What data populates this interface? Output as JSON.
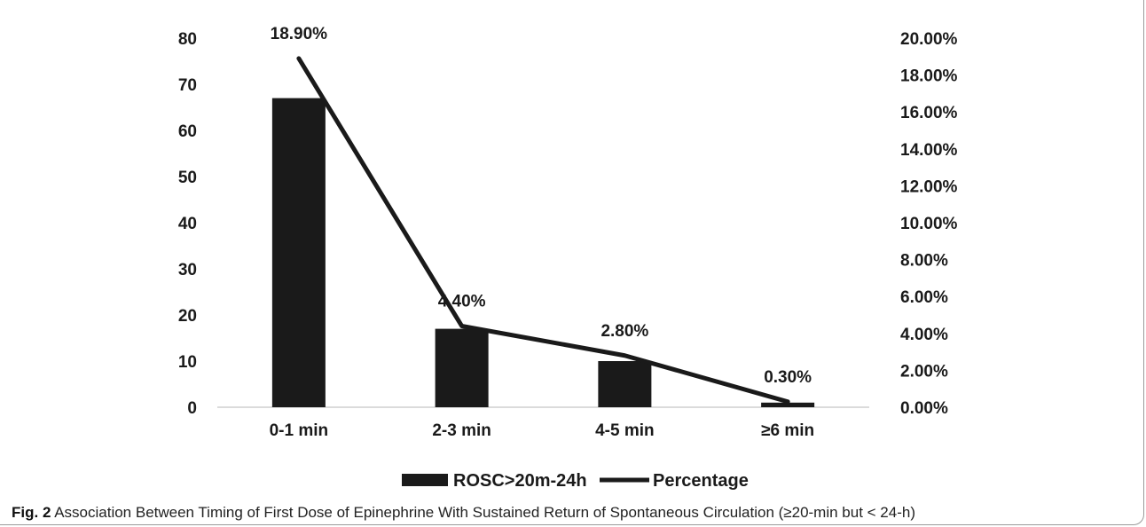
{
  "chart_data": {
    "type": "bar",
    "categories": [
      "0-1 min",
      "2-3 min",
      "4-5 min",
      "≥6 min"
    ],
    "series": [
      {
        "name": "ROSC>20m-24h",
        "type": "bar",
        "axis": "left",
        "values": [
          67,
          17,
          10,
          1
        ]
      },
      {
        "name": "Percentage",
        "type": "line",
        "axis": "right",
        "values": [
          0.189,
          0.044,
          0.028,
          0.003
        ]
      }
    ],
    "data_labels": [
      "18.90%",
      "4.40%",
      "2.80%",
      "0.30%"
    ],
    "y_left": {
      "ylim": [
        0,
        80
      ],
      "ticks": [
        "0",
        "10",
        "20",
        "30",
        "40",
        "50",
        "60",
        "70",
        "80"
      ]
    },
    "y_right": {
      "ylim": [
        0,
        0.2
      ],
      "ticks": [
        "0.00%",
        "2.00%",
        "4.00%",
        "6.00%",
        "8.00%",
        "10.00%",
        "12.00%",
        "14.00%",
        "16.00%",
        "18.00%",
        "20.00%"
      ]
    },
    "grid": false,
    "legend_position": "bottom",
    "colors": {
      "bar": "#1a1a1a",
      "line": "#1a1a1a"
    }
  },
  "caption": {
    "label": "Fig. 2",
    "text": " Association Between Timing of First Dose of Epinephrine With Sustained Return of Spontaneous Circulation (≥20-min but < 24-h)"
  }
}
